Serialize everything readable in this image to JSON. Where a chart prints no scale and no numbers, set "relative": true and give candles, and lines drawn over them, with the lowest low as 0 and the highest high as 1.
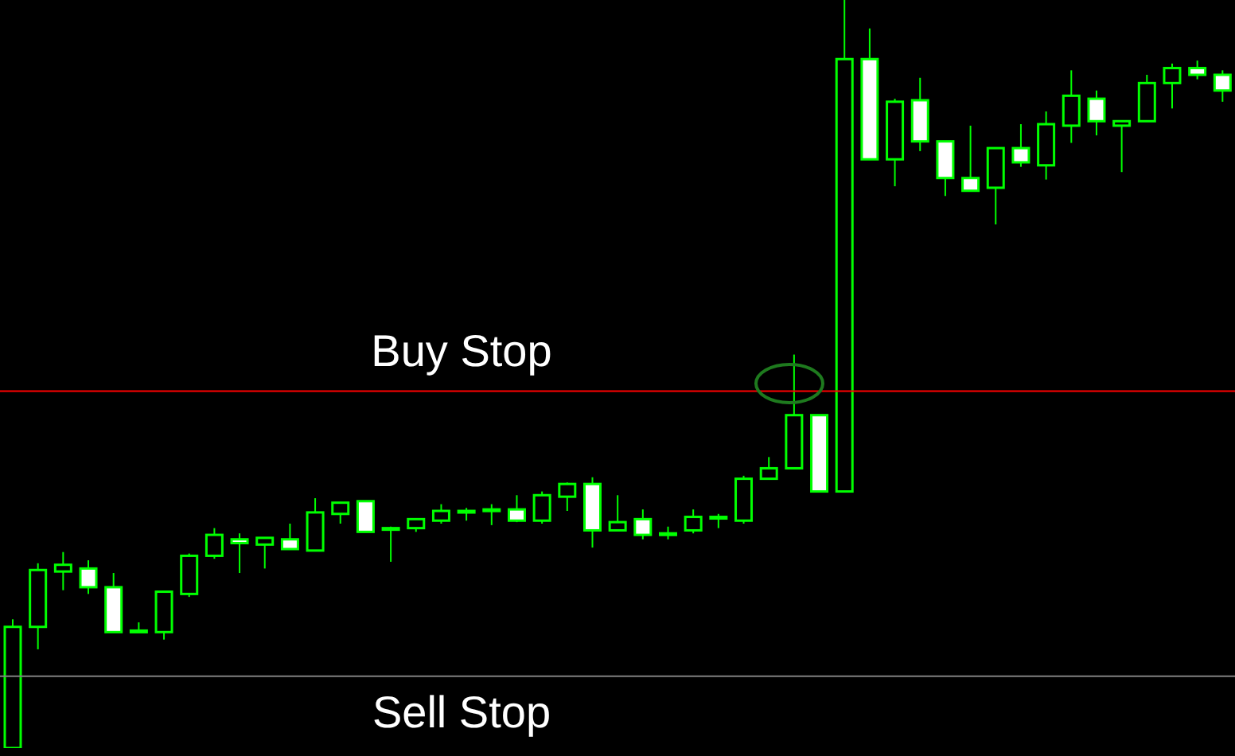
{
  "chart_data": {
    "type": "candlestick",
    "relative": true,
    "tick_labels": false,
    "grid": false,
    "legend": false,
    "categories": [
      null,
      null,
      null,
      null,
      null,
      null,
      null,
      null,
      null,
      null,
      null,
      null,
      null,
      null,
      null,
      null,
      null,
      null,
      null,
      null,
      null,
      null,
      null,
      null,
      null,
      null,
      null,
      null,
      null,
      null,
      null,
      null,
      null,
      null,
      null,
      null,
      null,
      null,
      null,
      null,
      null,
      null,
      null,
      null,
      null,
      null,
      null,
      null,
      null
    ],
    "series": [
      {
        "color": "#00ff00",
        "ohlc": [
          [
            0,
            0.172,
            0,
            0.162
          ],
          [
            0.162,
            0.247,
            0.132,
            0.238
          ],
          [
            0.236,
            0.262,
            0.211,
            0.245
          ],
          [
            0.24,
            0.251,
            0.206,
            0.215
          ],
          [
            0.215,
            0.234,
            0.155,
            0.155
          ],
          [
            0.155,
            0.168,
            0.155,
            0.157
          ],
          [
            0.155,
            0.209,
            0.145,
            0.209
          ],
          [
            0.206,
            0.26,
            0.202,
            0.257
          ],
          [
            0.257,
            0.294,
            0.253,
            0.285
          ],
          [
            0.279,
            0.287,
            0.234,
            0.274
          ],
          [
            0.272,
            0.281,
            0.24,
            0.281
          ],
          [
            0.279,
            0.3,
            0.266,
            0.266
          ],
          [
            0.264,
            0.334,
            0.264,
            0.315
          ],
          [
            0.313,
            0.328,
            0.3,
            0.328
          ],
          [
            0.33,
            0.33,
            0.289,
            0.289
          ],
          [
            0.294,
            0.296,
            0.249,
            0.294
          ],
          [
            0.294,
            0.306,
            0.289,
            0.306
          ],
          [
            0.304,
            0.326,
            0.3,
            0.317
          ],
          [
            0.317,
            0.321,
            0.304,
            0.317
          ],
          [
            0.317,
            0.326,
            0.298,
            0.319
          ],
          [
            0.319,
            0.338,
            0.302,
            0.304
          ],
          [
            0.304,
            0.343,
            0.3,
            0.338
          ],
          [
            0.336,
            0.355,
            0.317,
            0.353
          ],
          [
            0.353,
            0.362,
            0.268,
            0.291
          ],
          [
            0.291,
            0.338,
            0.291,
            0.302
          ],
          [
            0.306,
            0.319,
            0.279,
            0.285
          ],
          [
            0.287,
            0.296,
            0.279,
            0.287
          ],
          [
            0.291,
            0.319,
            0.287,
            0.309
          ],
          [
            0.309,
            0.313,
            0.294,
            0.309
          ],
          [
            0.304,
            0.364,
            0.3,
            0.36
          ],
          [
            0.36,
            0.389,
            0.36,
            0.374
          ],
          [
            0.374,
            0.526,
            0.374,
            0.445
          ],
          [
            0.445,
            0.445,
            0.343,
            0.343
          ],
          [
            0.343,
            1,
            0.343,
            0.921
          ],
          [
            0.921,
            0.962,
            0.787,
            0.787
          ],
          [
            0.787,
            0.868,
            0.751,
            0.864
          ],
          [
            0.866,
            0.896,
            0.798,
            0.811
          ],
          [
            0.811,
            0.811,
            0.738,
            0.762
          ],
          [
            0.762,
            0.832,
            0.745,
            0.745
          ],
          [
            0.749,
            0.802,
            0.7,
            0.802
          ],
          [
            0.802,
            0.834,
            0.777,
            0.783
          ],
          [
            0.779,
            0.851,
            0.76,
            0.834
          ],
          [
            0.832,
            0.906,
            0.809,
            0.872
          ],
          [
            0.868,
            0.879,
            0.819,
            0.838
          ],
          [
            0.832,
            0.838,
            0.77,
            0.838
          ],
          [
            0.838,
            0.9,
            0.838,
            0.889
          ],
          [
            0.889,
            0.915,
            0.855,
            0.909
          ],
          [
            0.909,
            0.919,
            0.894,
            0.9
          ],
          [
            0.9,
            0.906,
            0.864,
            0.879
          ]
        ]
      }
    ],
    "ref_lines": [
      {
        "axis": "y",
        "value": 0.477,
        "label": "Buy Stop",
        "color": "#ff0000"
      },
      {
        "axis": "y",
        "value": 0.096,
        "label": "Sell Stop",
        "color": "#808080"
      }
    ]
  }
}
